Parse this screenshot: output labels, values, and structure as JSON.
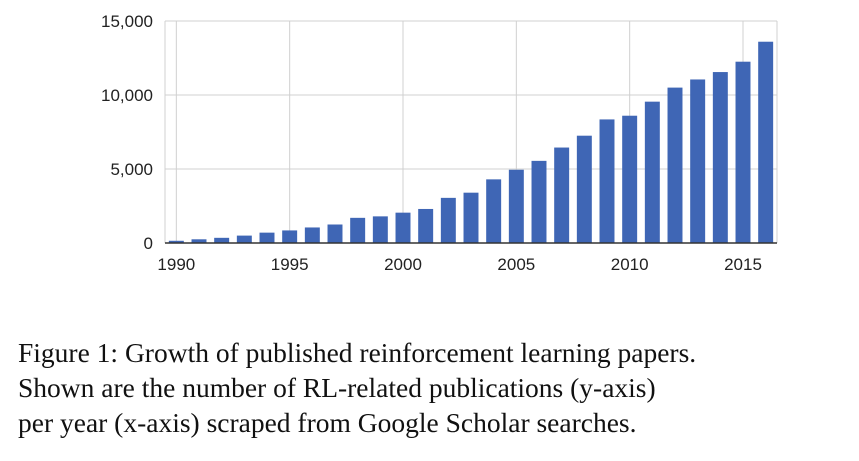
{
  "chart_data": {
    "type": "bar",
    "x": [
      1990,
      1991,
      1992,
      1993,
      1994,
      1995,
      1996,
      1997,
      1998,
      1999,
      2000,
      2001,
      2002,
      2003,
      2004,
      2005,
      2006,
      2007,
      2008,
      2009,
      2010,
      2011,
      2012,
      2013,
      2014,
      2015,
      2016
    ],
    "values": [
      150,
      250,
      350,
      500,
      700,
      850,
      1050,
      1250,
      1700,
      1800,
      2050,
      2300,
      3050,
      3400,
      4300,
      4950,
      5550,
      6450,
      7250,
      8350,
      8600,
      9550,
      10500,
      11050,
      11550,
      12250,
      13600
    ],
    "ylim": [
      0,
      15000
    ],
    "yticks": [
      0,
      5000,
      10000,
      15000
    ],
    "ytick_labels": [
      "0",
      "5,000",
      "10,000",
      "15,000"
    ],
    "xticks": [
      1990,
      1995,
      2000,
      2005,
      2010,
      2015
    ],
    "xtick_labels": [
      "1990",
      "1995",
      "2000",
      "2005",
      "2010",
      "2015"
    ],
    "grid": true,
    "bar_color": "#3f66b5"
  },
  "caption": {
    "line1": "Figure 1: Growth of published reinforcement learning papers.",
    "line2": "Shown are the number of RL-related publications (y-axis)",
    "line3": "per year (x-axis) scraped from Google Scholar searches."
  }
}
